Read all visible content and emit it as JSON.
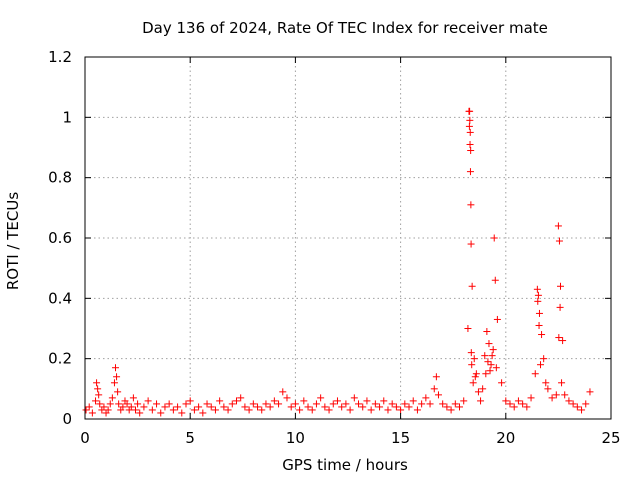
{
  "chart_data": {
    "type": "scatter",
    "title": "Day 136 of 2024, Rate Of TEC Index for receiver mate",
    "xlabel": "GPS time / hours",
    "ylabel": "ROTI / TECUs",
    "xlim": [
      0,
      25
    ],
    "ylim": [
      0,
      1.2
    ],
    "xticks": [
      0,
      5,
      10,
      15,
      20,
      25
    ],
    "xtick_labels": [
      "0",
      "5",
      "10",
      "15",
      "20",
      "25"
    ],
    "yticks": [
      0,
      0.2,
      0.4,
      0.6,
      0.8,
      1.0,
      1.2
    ],
    "ytick_labels": [
      "0",
      "0.2",
      "0.4",
      "0.6",
      "0.8",
      "1",
      "1.2"
    ],
    "grid": true,
    "marker": "+",
    "color": "#ff0000",
    "series": [
      {
        "name": "ROTI",
        "x": [
          0.05,
          0.2,
          0.35,
          0.5,
          0.55,
          0.6,
          0.65,
          0.7,
          0.8,
          0.9,
          1.0,
          1.1,
          1.2,
          1.3,
          1.4,
          1.45,
          1.5,
          1.55,
          1.6,
          1.7,
          1.8,
          1.9,
          2.0,
          2.1,
          2.2,
          2.3,
          2.4,
          2.5,
          2.6,
          2.8,
          3.0,
          3.2,
          3.4,
          3.6,
          3.8,
          4.0,
          4.2,
          4.4,
          4.6,
          4.8,
          5.0,
          5.2,
          5.4,
          5.6,
          5.8,
          6.0,
          6.2,
          6.4,
          6.6,
          6.8,
          7.0,
          7.2,
          7.4,
          7.6,
          7.8,
          8.0,
          8.2,
          8.4,
          8.6,
          8.8,
          9.0,
          9.2,
          9.4,
          9.6,
          9.8,
          10.0,
          10.2,
          10.4,
          10.6,
          10.8,
          11.0,
          11.2,
          11.4,
          11.6,
          11.8,
          12.0,
          12.2,
          12.4,
          12.6,
          12.8,
          13.0,
          13.2,
          13.4,
          13.6,
          13.8,
          14.0,
          14.2,
          14.4,
          14.6,
          14.8,
          15.0,
          15.2,
          15.4,
          15.6,
          15.8,
          16.0,
          16.2,
          16.4,
          16.6,
          16.7,
          16.8,
          17.0,
          17.2,
          17.4,
          17.6,
          17.8,
          18.0,
          18.2,
          18.25,
          18.27,
          18.3,
          18.32,
          18.35,
          18.4,
          18.5,
          18.6,
          18.7,
          18.8,
          18.9,
          19.0,
          19.1,
          19.2,
          19.3,
          19.4,
          19.45,
          19.5,
          19.6,
          19.8,
          20.0,
          20.2,
          20.4,
          20.6,
          20.8,
          21.0,
          21.2,
          21.4,
          21.5,
          21.55,
          21.6,
          21.7,
          21.8,
          21.9,
          22.0,
          22.2,
          22.4,
          22.5,
          22.55,
          22.6,
          22.7,
          22.8,
          23.0,
          23.2,
          23.4,
          23.6,
          23.8,
          24.0,
          18.28,
          18.29,
          18.31,
          18.33,
          18.34,
          18.36,
          18.38,
          19.35,
          19.55,
          22.52,
          22.58,
          21.52,
          21.58,
          19.05,
          18.45,
          18.55,
          19.15,
          19.25,
          21.65,
          22.65
        ],
        "y": [
          0.03,
          0.04,
          0.02,
          0.06,
          0.12,
          0.1,
          0.08,
          0.05,
          0.03,
          0.04,
          0.02,
          0.03,
          0.05,
          0.07,
          0.12,
          0.17,
          0.14,
          0.09,
          0.05,
          0.03,
          0.04,
          0.06,
          0.05,
          0.03,
          0.04,
          0.07,
          0.03,
          0.05,
          0.02,
          0.04,
          0.06,
          0.03,
          0.05,
          0.02,
          0.04,
          0.05,
          0.03,
          0.04,
          0.02,
          0.05,
          0.06,
          0.03,
          0.04,
          0.02,
          0.05,
          0.04,
          0.03,
          0.06,
          0.04,
          0.03,
          0.05,
          0.06,
          0.07,
          0.04,
          0.03,
          0.05,
          0.04,
          0.03,
          0.05,
          0.04,
          0.06,
          0.05,
          0.09,
          0.07,
          0.04,
          0.05,
          0.03,
          0.06,
          0.04,
          0.03,
          0.05,
          0.07,
          0.04,
          0.03,
          0.05,
          0.06,
          0.04,
          0.05,
          0.03,
          0.07,
          0.05,
          0.04,
          0.06,
          0.03,
          0.05,
          0.04,
          0.06,
          0.03,
          0.05,
          0.04,
          0.03,
          0.05,
          0.04,
          0.06,
          0.03,
          0.05,
          0.07,
          0.05,
          0.1,
          0.14,
          0.08,
          0.05,
          0.04,
          0.03,
          0.05,
          0.04,
          0.06,
          0.3,
          1.02,
          0.97,
          0.91,
          0.82,
          0.58,
          0.44,
          0.2,
          0.15,
          0.09,
          0.06,
          0.1,
          0.21,
          0.29,
          0.25,
          0.18,
          0.23,
          0.6,
          0.46,
          0.33,
          0.12,
          0.06,
          0.05,
          0.04,
          0.06,
          0.05,
          0.04,
          0.07,
          0.15,
          0.43,
          0.41,
          0.35,
          0.28,
          0.2,
          0.12,
          0.1,
          0.07,
          0.08,
          0.64,
          0.59,
          0.44,
          0.26,
          0.08,
          0.06,
          0.05,
          0.04,
          0.03,
          0.05,
          0.09,
          1.02,
          0.99,
          0.95,
          0.89,
          0.71,
          0.22,
          0.18,
          0.21,
          0.17,
          0.27,
          0.37,
          0.39,
          0.31,
          0.15,
          0.12,
          0.14,
          0.19,
          0.16,
          0.18,
          0.12
        ]
      }
    ]
  }
}
